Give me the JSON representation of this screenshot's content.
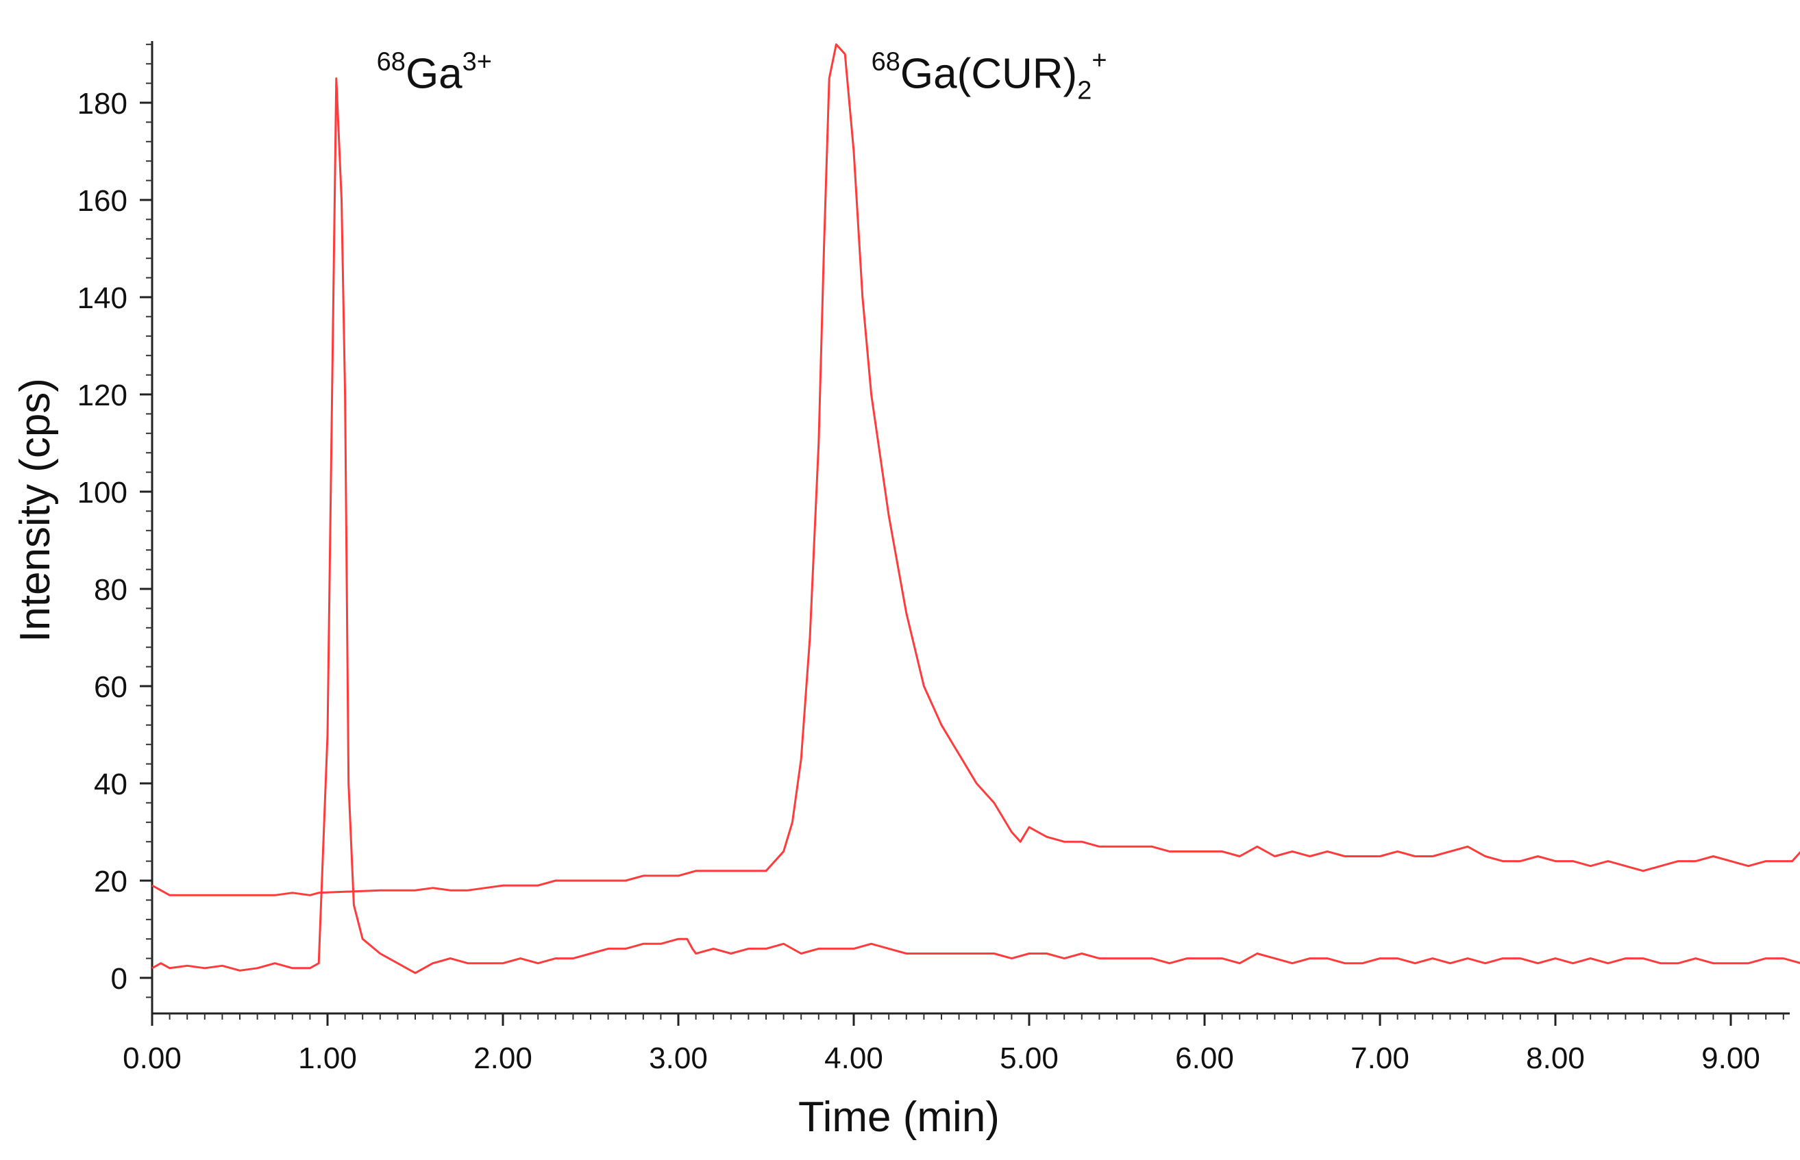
{
  "chart_data": {
    "type": "line",
    "xlabel": "Time (min)",
    "ylabel": "Intensity (cps)",
    "xlim": [
      0,
      9.5
    ],
    "ylim": [
      -8,
      192
    ],
    "x_ticks": [
      {
        "value": 0,
        "label": "0.00"
      },
      {
        "value": 1,
        "label": "1.00"
      },
      {
        "value": 2,
        "label": "2.00"
      },
      {
        "value": 3,
        "label": "3.00"
      },
      {
        "value": 4,
        "label": "4.00"
      },
      {
        "value": 5,
        "label": "5.00"
      },
      {
        "value": 6,
        "label": "6.00"
      },
      {
        "value": 7,
        "label": "7.00"
      },
      {
        "value": 8,
        "label": "8.00"
      },
      {
        "value": 9,
        "label": "9.00"
      }
    ],
    "y_ticks": [
      {
        "value": 0,
        "label": "0"
      },
      {
        "value": 20,
        "label": "20"
      },
      {
        "value": 40,
        "label": "40"
      },
      {
        "value": 60,
        "label": "60"
      },
      {
        "value": 80,
        "label": "80"
      },
      {
        "value": 100,
        "label": "100"
      },
      {
        "value": 120,
        "label": "120"
      },
      {
        "value": 140,
        "label": "140"
      },
      {
        "value": 160,
        "label": "160"
      },
      {
        "value": 180,
        "label": "180"
      }
    ],
    "grid": false,
    "line_color": "#ff3b3b",
    "series": [
      {
        "x": [
          0.0,
          0.05,
          0.1,
          0.2,
          0.3,
          0.4,
          0.5,
          0.6,
          0.7,
          0.8,
          0.85,
          0.9,
          0.95,
          1.0,
          1.05,
          1.08,
          1.1,
          1.12,
          1.15,
          1.2,
          1.3,
          1.4,
          1.5,
          1.6,
          1.7,
          1.8,
          1.9,
          2.0,
          2.1,
          2.2,
          2.3,
          2.4,
          2.5,
          2.6,
          2.7,
          2.8,
          2.9,
          3.0,
          3.05,
          3.08,
          3.1,
          3.2,
          3.3,
          3.4,
          3.5,
          3.6,
          3.7,
          3.8,
          3.9,
          4.0,
          4.1,
          4.2,
          4.3,
          4.4,
          4.5,
          4.6,
          4.7,
          4.8,
          4.9,
          5.0,
          5.1,
          5.2,
          5.3,
          5.4,
          5.5,
          5.6,
          5.7,
          5.8,
          5.9,
          6.0,
          6.1,
          6.2,
          6.3,
          6.4,
          6.5,
          6.6,
          6.7,
          6.8,
          6.9,
          7.0,
          7.1,
          7.2,
          7.3,
          7.4,
          7.5,
          7.6,
          7.7,
          7.8,
          7.9,
          8.0,
          8.1,
          8.2,
          8.3,
          8.4,
          8.5,
          8.6,
          8.7,
          8.8,
          8.9,
          9.0,
          9.1,
          9.2,
          9.3,
          9.4,
          9.5
        ],
        "y": [
          2,
          3,
          2,
          2.5,
          2,
          2.5,
          1.5,
          2,
          3,
          2,
          2,
          2,
          3,
          50,
          185,
          160,
          120,
          40,
          15,
          8,
          5,
          3,
          1,
          3,
          4,
          3,
          3,
          3,
          4,
          3,
          4,
          4,
          5,
          6,
          6,
          7,
          7,
          8,
          8,
          6,
          5,
          6,
          5,
          6,
          6,
          7,
          5,
          6,
          6,
          6,
          7,
          6,
          5,
          5,
          5,
          5,
          5,
          5,
          4,
          5,
          5,
          4,
          5,
          4,
          4,
          4,
          4,
          3,
          4,
          4,
          4,
          3,
          5,
          4,
          3,
          4,
          4,
          3,
          3,
          4,
          4,
          3,
          4,
          3,
          4,
          3,
          4,
          4,
          3,
          4,
          3,
          4,
          3,
          4,
          4,
          3,
          3,
          4,
          3,
          3,
          3,
          4,
          4,
          3,
          4
        ]
      },
      {
        "x": [
          0.0,
          0.05,
          0.1,
          0.2,
          0.3,
          0.4,
          0.5,
          0.6,
          0.7,
          0.8,
          0.9,
          0.95,
          1.3,
          1.4,
          1.5,
          1.6,
          1.7,
          1.8,
          1.9,
          2.0,
          2.1,
          2.2,
          2.3,
          2.4,
          2.5,
          2.6,
          2.7,
          2.8,
          2.9,
          3.0,
          3.1,
          3.2,
          3.3,
          3.4,
          3.5,
          3.55,
          3.6,
          3.65,
          3.7,
          3.75,
          3.8,
          3.83,
          3.86,
          3.9,
          3.95,
          4.0,
          4.05,
          4.1,
          4.2,
          4.3,
          4.4,
          4.5,
          4.6,
          4.7,
          4.8,
          4.9,
          4.95,
          5.0,
          5.1,
          5.2,
          5.3,
          5.4,
          5.5,
          5.6,
          5.7,
          5.8,
          5.9,
          6.0,
          6.1,
          6.2,
          6.3,
          6.4,
          6.5,
          6.6,
          6.7,
          6.8,
          6.9,
          7.0,
          7.1,
          7.2,
          7.3,
          7.4,
          7.5,
          7.6,
          7.7,
          7.8,
          7.9,
          8.0,
          8.1,
          8.2,
          8.3,
          8.4,
          8.5,
          8.6,
          8.7,
          8.8,
          8.9,
          9.0,
          9.1,
          9.2,
          9.3,
          9.35,
          9.4,
          9.45,
          9.5
        ],
        "y": [
          19,
          18,
          17,
          17,
          17,
          17,
          17,
          17,
          17,
          17.5,
          17,
          17.5,
          18,
          18,
          18,
          18.5,
          18,
          18,
          18.5,
          19,
          19,
          19,
          20,
          20,
          20,
          20,
          20,
          21,
          21,
          21,
          22,
          22,
          22,
          22,
          22,
          24,
          26,
          32,
          45,
          70,
          110,
          150,
          185,
          192,
          190,
          170,
          140,
          120,
          95,
          75,
          60,
          52,
          46,
          40,
          36,
          30,
          28,
          31,
          29,
          28,
          28,
          27,
          27,
          27,
          27,
          26,
          26,
          26,
          26,
          25,
          27,
          25,
          26,
          25,
          26,
          25,
          25,
          25,
          26,
          25,
          25,
          26,
          27,
          25,
          24,
          24,
          25,
          24,
          24,
          23,
          24,
          23,
          22,
          23,
          24,
          24,
          25,
          24,
          23,
          24,
          24,
          24,
          26,
          30,
          31
        ]
      }
    ],
    "annotations": [
      {
        "main": "Ga",
        "pre_sup": "68",
        "post_sup": "3+",
        "x": 1.28,
        "y": 183
      },
      {
        "main": "Ga(CUR)",
        "pre_sup": "68",
        "sub": "2",
        "post_sup": "+",
        "x": 4.1,
        "y": 183
      }
    ]
  }
}
